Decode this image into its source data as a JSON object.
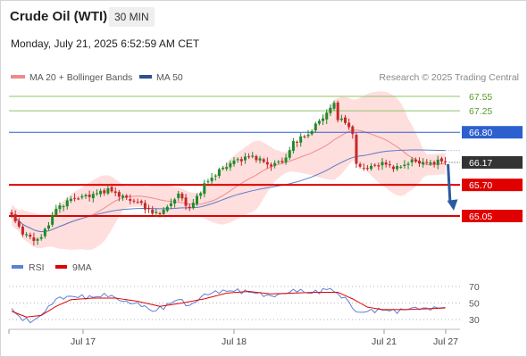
{
  "header": {
    "instrument": "Crude Oil (WTI)",
    "timeframe": "30 MIN",
    "datetime": "Monday, July 21, 2025 6:52:59 AM CET"
  },
  "legend": {
    "ma20": "MA 20 + Bollinger Bands",
    "ma50": "MA 50",
    "credit": "Research © 2025 Trading Central",
    "rsi": "RSI",
    "ma9": "9MA"
  },
  "colors": {
    "candle_up": "#1f8a2a",
    "candle_down": "#c62828",
    "bollinger_fill": "#ffd3d3",
    "ma20": "#f08a8a",
    "ma50": "#5b7bc7",
    "resistance_green": "#8cc46a",
    "resistance_blue": "#2e5fcf",
    "support_red": "#e00000",
    "price_label": "#333333",
    "arrow": "#2c5aa0",
    "rsi": "#5b7fd8",
    "rsi_ma": "#e00000"
  },
  "chart_data": [
    {
      "type": "candlestick",
      "ylim": [
        64.4,
        67.75
      ],
      "x_ticks": [
        "Jul 17",
        "Jul 18",
        "Jul 21",
        "Jul 27"
      ],
      "series": [
        {
          "name": "MA 20 + Bollinger Bands"
        },
        {
          "name": "MA 50"
        }
      ],
      "levels": [
        {
          "value": 67.55,
          "label": "67.55",
          "kind": "resistance"
        },
        {
          "value": 67.25,
          "label": "67.25",
          "kind": "resistance"
        },
        {
          "value": 66.8,
          "label": "66.80",
          "kind": "pivot"
        },
        {
          "value": 66.17,
          "label": "66.17",
          "kind": "last"
        },
        {
          "value": 65.7,
          "label": "65.70",
          "kind": "support"
        },
        {
          "value": 65.05,
          "label": "65.05",
          "kind": "support"
        }
      ],
      "anchors": [
        {
          "i": 0,
          "price": 65.05
        },
        {
          "i": 3,
          "price": 64.7
        },
        {
          "i": 6,
          "price": 64.55
        },
        {
          "i": 8,
          "price": 64.6
        },
        {
          "i": 12,
          "price": 65.2
        },
        {
          "i": 16,
          "price": 65.4
        },
        {
          "i": 22,
          "price": 65.5
        },
        {
          "i": 26,
          "price": 65.6
        },
        {
          "i": 30,
          "price": 65.45
        },
        {
          "i": 35,
          "price": 65.3
        },
        {
          "i": 38,
          "price": 65.1
        },
        {
          "i": 41,
          "price": 65.15
        },
        {
          "i": 45,
          "price": 65.5
        },
        {
          "i": 48,
          "price": 65.2
        },
        {
          "i": 52,
          "price": 65.7
        },
        {
          "i": 56,
          "price": 66.0
        },
        {
          "i": 60,
          "price": 66.2
        },
        {
          "i": 65,
          "price": 66.3
        },
        {
          "i": 70,
          "price": 66.1
        },
        {
          "i": 74,
          "price": 66.25
        },
        {
          "i": 76,
          "price": 66.6
        },
        {
          "i": 80,
          "price": 66.75
        },
        {
          "i": 82,
          "price": 66.95
        },
        {
          "i": 85,
          "price": 67.2
        },
        {
          "i": 87,
          "price": 67.4
        },
        {
          "i": 88,
          "price": 67.1
        },
        {
          "i": 90,
          "price": 67.0
        },
        {
          "i": 92,
          "price": 66.8
        },
        {
          "i": 93,
          "price": 66.1
        },
        {
          "i": 96,
          "price": 66.05
        },
        {
          "i": 100,
          "price": 66.15
        },
        {
          "i": 104,
          "price": 66.05
        },
        {
          "i": 108,
          "price": 66.2
        },
        {
          "i": 112,
          "price": 66.15
        },
        {
          "i": 116,
          "price": 66.2
        },
        {
          "i": 117,
          "price": 66.17
        }
      ],
      "forecast_arrow": {
        "from": 66.17,
        "to": 65.05
      }
    },
    {
      "type": "line",
      "ylim": [
        20,
        80
      ],
      "y_ticks": [
        70,
        50,
        30
      ],
      "series": [
        {
          "name": "RSI",
          "anchors": [
            {
              "i": 0,
              "v": 42
            },
            {
              "i": 3,
              "v": 30
            },
            {
              "i": 6,
              "v": 28
            },
            {
              "i": 9,
              "v": 40
            },
            {
              "i": 12,
              "v": 55
            },
            {
              "i": 16,
              "v": 58
            },
            {
              "i": 22,
              "v": 57
            },
            {
              "i": 26,
              "v": 60
            },
            {
              "i": 30,
              "v": 52
            },
            {
              "i": 35,
              "v": 48
            },
            {
              "i": 38,
              "v": 40
            },
            {
              "i": 41,
              "v": 45
            },
            {
              "i": 45,
              "v": 55
            },
            {
              "i": 48,
              "v": 46
            },
            {
              "i": 52,
              "v": 60
            },
            {
              "i": 56,
              "v": 64
            },
            {
              "i": 60,
              "v": 65
            },
            {
              "i": 65,
              "v": 63
            },
            {
              "i": 70,
              "v": 58
            },
            {
              "i": 74,
              "v": 62
            },
            {
              "i": 77,
              "v": 66
            },
            {
              "i": 80,
              "v": 62
            },
            {
              "i": 83,
              "v": 64
            },
            {
              "i": 86,
              "v": 68
            },
            {
              "i": 88,
              "v": 60
            },
            {
              "i": 90,
              "v": 56
            },
            {
              "i": 92,
              "v": 45
            },
            {
              "i": 93,
              "v": 38
            },
            {
              "i": 96,
              "v": 40
            },
            {
              "i": 100,
              "v": 42
            },
            {
              "i": 104,
              "v": 40
            },
            {
              "i": 108,
              "v": 44
            },
            {
              "i": 112,
              "v": 43
            },
            {
              "i": 117,
              "v": 45
            }
          ]
        },
        {
          "name": "9MA",
          "anchors": [
            {
              "i": 0,
              "v": 40
            },
            {
              "i": 4,
              "v": 33
            },
            {
              "i": 8,
              "v": 35
            },
            {
              "i": 12,
              "v": 46
            },
            {
              "i": 16,
              "v": 54
            },
            {
              "i": 22,
              "v": 56
            },
            {
              "i": 28,
              "v": 56
            },
            {
              "i": 34,
              "v": 52
            },
            {
              "i": 40,
              "v": 46
            },
            {
              "i": 46,
              "v": 50
            },
            {
              "i": 52,
              "v": 55
            },
            {
              "i": 58,
              "v": 62
            },
            {
              "i": 64,
              "v": 64
            },
            {
              "i": 70,
              "v": 61
            },
            {
              "i": 76,
              "v": 62
            },
            {
              "i": 82,
              "v": 63
            },
            {
              "i": 88,
              "v": 63
            },
            {
              "i": 92,
              "v": 55
            },
            {
              "i": 96,
              "v": 45
            },
            {
              "i": 100,
              "v": 42
            },
            {
              "i": 106,
              "v": 42
            },
            {
              "i": 112,
              "v": 43
            },
            {
              "i": 117,
              "v": 44
            }
          ]
        }
      ]
    }
  ]
}
